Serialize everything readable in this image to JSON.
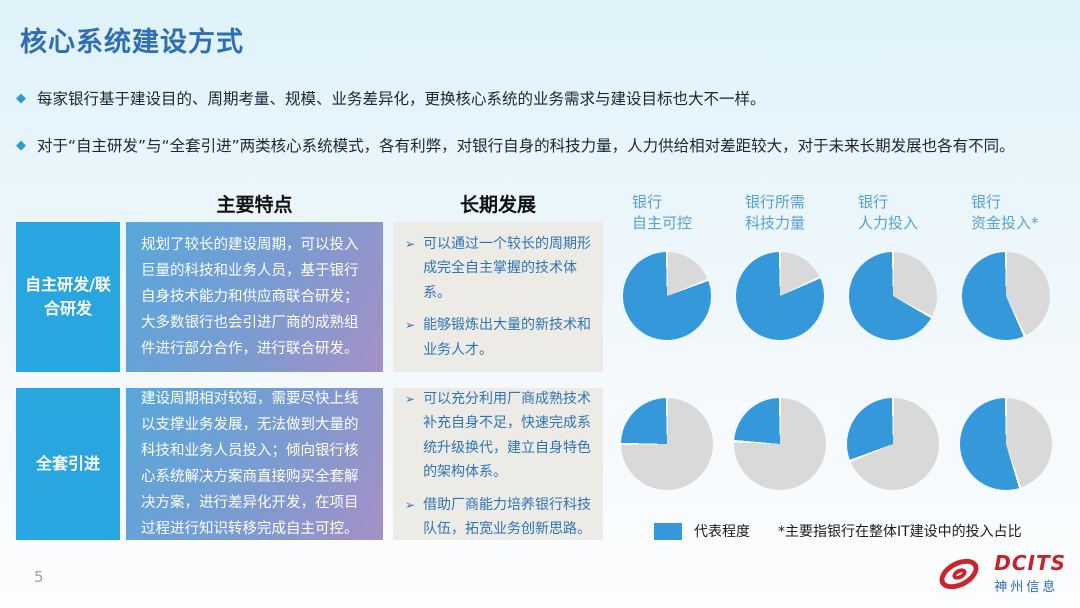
{
  "slide": {
    "title": "核心系统建设方式",
    "page_number": "5",
    "bullet_icon": "◆",
    "arrow_icon": "➢",
    "bullets": [
      "每家银行基于建设目的、周期考量、规模、业务差异化，更换核心系统的业务需求与建设目标也大不一样。",
      "对于“自主研发”与“全套引进”两类核心系统模式，各有利弊，对银行自身的科技力量，人力供给相对差距较大，对于未来长期发展也各有不同。"
    ]
  },
  "table": {
    "col_headers": [
      "主要特点",
      "长期发展"
    ],
    "rows": [
      {
        "label": "自主研发/联合研发",
        "features": "规划了较长的建设周期，可以投入巨量的科技和业务人员，基于银行自身技术能力和供应商联合研发；大多数银行也会引进厂商的成熟组件进行部分合作，进行联合研发。",
        "development": [
          "可以通过一个较长的周期形成完全自主掌握的技术体系。",
          "能够锻炼出大量的新技术和业务人才。"
        ]
      },
      {
        "label": "全套引进",
        "features": "建设周期相对较短，需要尽快上线以支撑业务发展，无法做到大量的科技和业务人员投入；倾向银行核心系统解决方案商直接购买全套解决方案，进行差异化开发，在项目过程进行知识转移完成自主可控。",
        "development": [
          "可以充分利用厂商成熟技术补充自身不足，快速完成系统升级换代，建立自身特色的架构体系。",
          "借助厂商能力培养银行科技队伍，拓宽业务创新思路。"
        ]
      }
    ]
  },
  "chart_data": {
    "type": "pie",
    "columns": [
      "银行\n自主可控",
      "银行所需\n科技力量",
      "银行\n人力投入",
      "银行\n资金投入*"
    ],
    "series": [
      {
        "name": "自主研发/联合研发",
        "values_pct": [
          81,
          82,
          67,
          57
        ]
      },
      {
        "name": "全套引进",
        "values_pct": [
          25,
          24,
          31,
          55
        ]
      }
    ],
    "note": "filled blue wedge always ends at 12 o'clock; remainder is gray",
    "colors": {
      "filled": "#3598db",
      "remainder": "#d9d9d9",
      "separator": "#ffffff"
    },
    "legend": {
      "label": "代表程度",
      "note": "*主要指银行在整体IT建设中的投入占比"
    }
  },
  "footer": {
    "logo_name": "DCITS",
    "logo_subtitle": "神州信息"
  }
}
